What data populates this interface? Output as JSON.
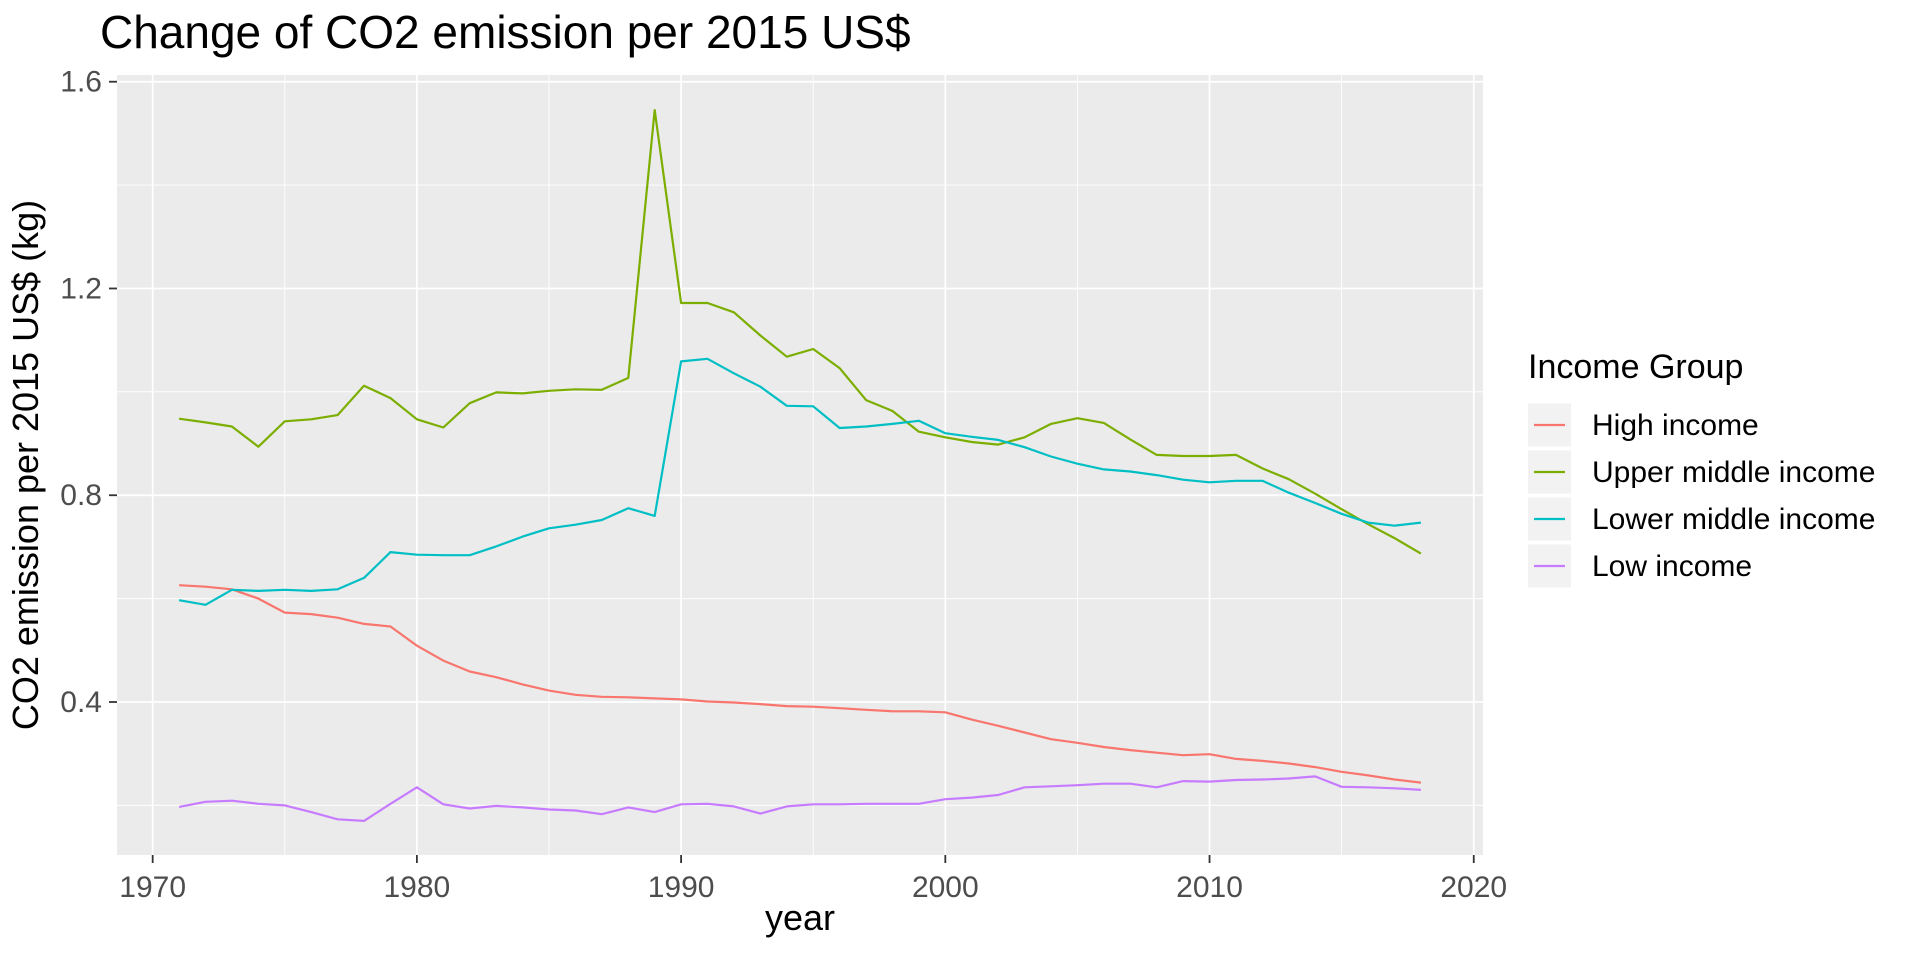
{
  "page": {
    "background": "#FFFFFF"
  },
  "chart_data": {
    "type": "line",
    "title": "Change of CO2 emission per 2015 US$",
    "xlabel": "year",
    "ylabel": "CO2 emission per 2015 US$ (kg)",
    "legend_title": "Income Group",
    "legend_position": "right",
    "grid": true,
    "panel_background": "ggplot2 grey panel with white major/minor gridlines",
    "x": [
      1971,
      1972,
      1973,
      1974,
      1975,
      1976,
      1977,
      1978,
      1979,
      1980,
      1981,
      1982,
      1983,
      1984,
      1985,
      1986,
      1987,
      1988,
      1989,
      1990,
      1991,
      1992,
      1993,
      1994,
      1995,
      1996,
      1997,
      1998,
      1999,
      2000,
      2001,
      2002,
      2003,
      2004,
      2005,
      2006,
      2007,
      2008,
      2009,
      2010,
      2011,
      2012,
      2013,
      2014,
      2015,
      2016,
      2017,
      2018
    ],
    "x_domain": [
      1968.65,
      2020.35
    ],
    "y_domain": [
      0.104,
      1.613
    ],
    "x_ticks": [
      1970,
      1980,
      1990,
      2000,
      2010,
      2020
    ],
    "x_tick_labels": [
      "1970",
      "1980",
      "1990",
      "2000",
      "2010",
      "2020"
    ],
    "x_minor_ticks": [
      1975,
      1985,
      1995,
      2005,
      2015
    ],
    "y_ticks": [
      0.4,
      0.8,
      1.2,
      1.6
    ],
    "y_tick_labels": [
      "0.4",
      "0.8",
      "1.2",
      "1.6"
    ],
    "y_minor_ticks": [
      0.2,
      0.6,
      1.0,
      1.4
    ],
    "series": [
      {
        "name": "High income",
        "color": "#F8766D",
        "values": [
          0.626,
          0.623,
          0.618,
          0.6,
          0.573,
          0.57,
          0.563,
          0.551,
          0.546,
          0.509,
          0.48,
          0.459,
          0.448,
          0.434,
          0.422,
          0.414,
          0.41,
          0.409,
          0.407,
          0.405,
          0.401,
          0.399,
          0.396,
          0.392,
          0.391,
          0.388,
          0.385,
          0.382,
          0.382,
          0.38,
          0.366,
          0.354,
          0.341,
          0.328,
          0.321,
          0.313,
          0.307,
          0.302,
          0.297,
          0.299,
          0.29,
          0.286,
          0.281,
          0.274,
          0.265,
          0.258,
          0.25,
          0.244
        ]
      },
      {
        "name": "Upper middle income",
        "color": "#7CAE00",
        "values": [
          0.948,
          0.941,
          0.933,
          0.894,
          0.943,
          0.947,
          0.955,
          1.012,
          0.988,
          0.947,
          0.931,
          0.978,
          0.999,
          0.997,
          1.002,
          1.005,
          1.004,
          1.027,
          1.545,
          1.172,
          1.172,
          1.154,
          1.109,
          1.068,
          1.083,
          1.046,
          0.984,
          0.963,
          0.923,
          0.912,
          0.903,
          0.898,
          0.912,
          0.938,
          0.949,
          0.94,
          0.908,
          0.878,
          0.876,
          0.876,
          0.878,
          0.852,
          0.831,
          0.803,
          0.773,
          0.744,
          0.717,
          0.687
        ]
      },
      {
        "name": "Lower middle income",
        "color": "#00BFC4",
        "values": [
          0.597,
          0.588,
          0.617,
          0.615,
          0.617,
          0.615,
          0.618,
          0.64,
          0.69,
          0.685,
          0.684,
          0.684,
          0.701,
          0.72,
          0.736,
          0.743,
          0.752,
          0.775,
          0.76,
          1.059,
          1.064,
          1.036,
          1.01,
          0.973,
          0.972,
          0.93,
          0.933,
          0.938,
          0.944,
          0.92,
          0.913,
          0.907,
          0.893,
          0.875,
          0.861,
          0.85,
          0.846,
          0.839,
          0.83,
          0.825,
          0.828,
          0.828,
          0.805,
          0.785,
          0.764,
          0.747,
          0.741,
          0.747
        ]
      },
      {
        "name": "Low income",
        "color": "#C77CFF",
        "values": [
          0.197,
          0.207,
          0.209,
          0.203,
          0.2,
          0.187,
          0.173,
          0.17,
          0.203,
          0.235,
          0.202,
          0.194,
          0.199,
          0.196,
          0.192,
          0.19,
          0.183,
          0.196,
          0.187,
          0.202,
          0.203,
          0.198,
          0.184,
          0.198,
          0.202,
          0.202,
          0.203,
          0.203,
          0.203,
          0.212,
          0.215,
          0.22,
          0.235,
          0.237,
          0.239,
          0.242,
          0.242,
          0.235,
          0.247,
          0.246,
          0.249,
          0.25,
          0.252,
          0.256,
          0.236,
          0.235,
          0.233,
          0.23
        ]
      }
    ],
    "colors": {
      "panel_bg": "#EBEBEB",
      "grid": "#FFFFFF",
      "tick_text": "#4D4D4D",
      "tick_mark": "#333333",
      "title_text": "#000000",
      "legend_key_bg": "#F2F2F2"
    }
  }
}
